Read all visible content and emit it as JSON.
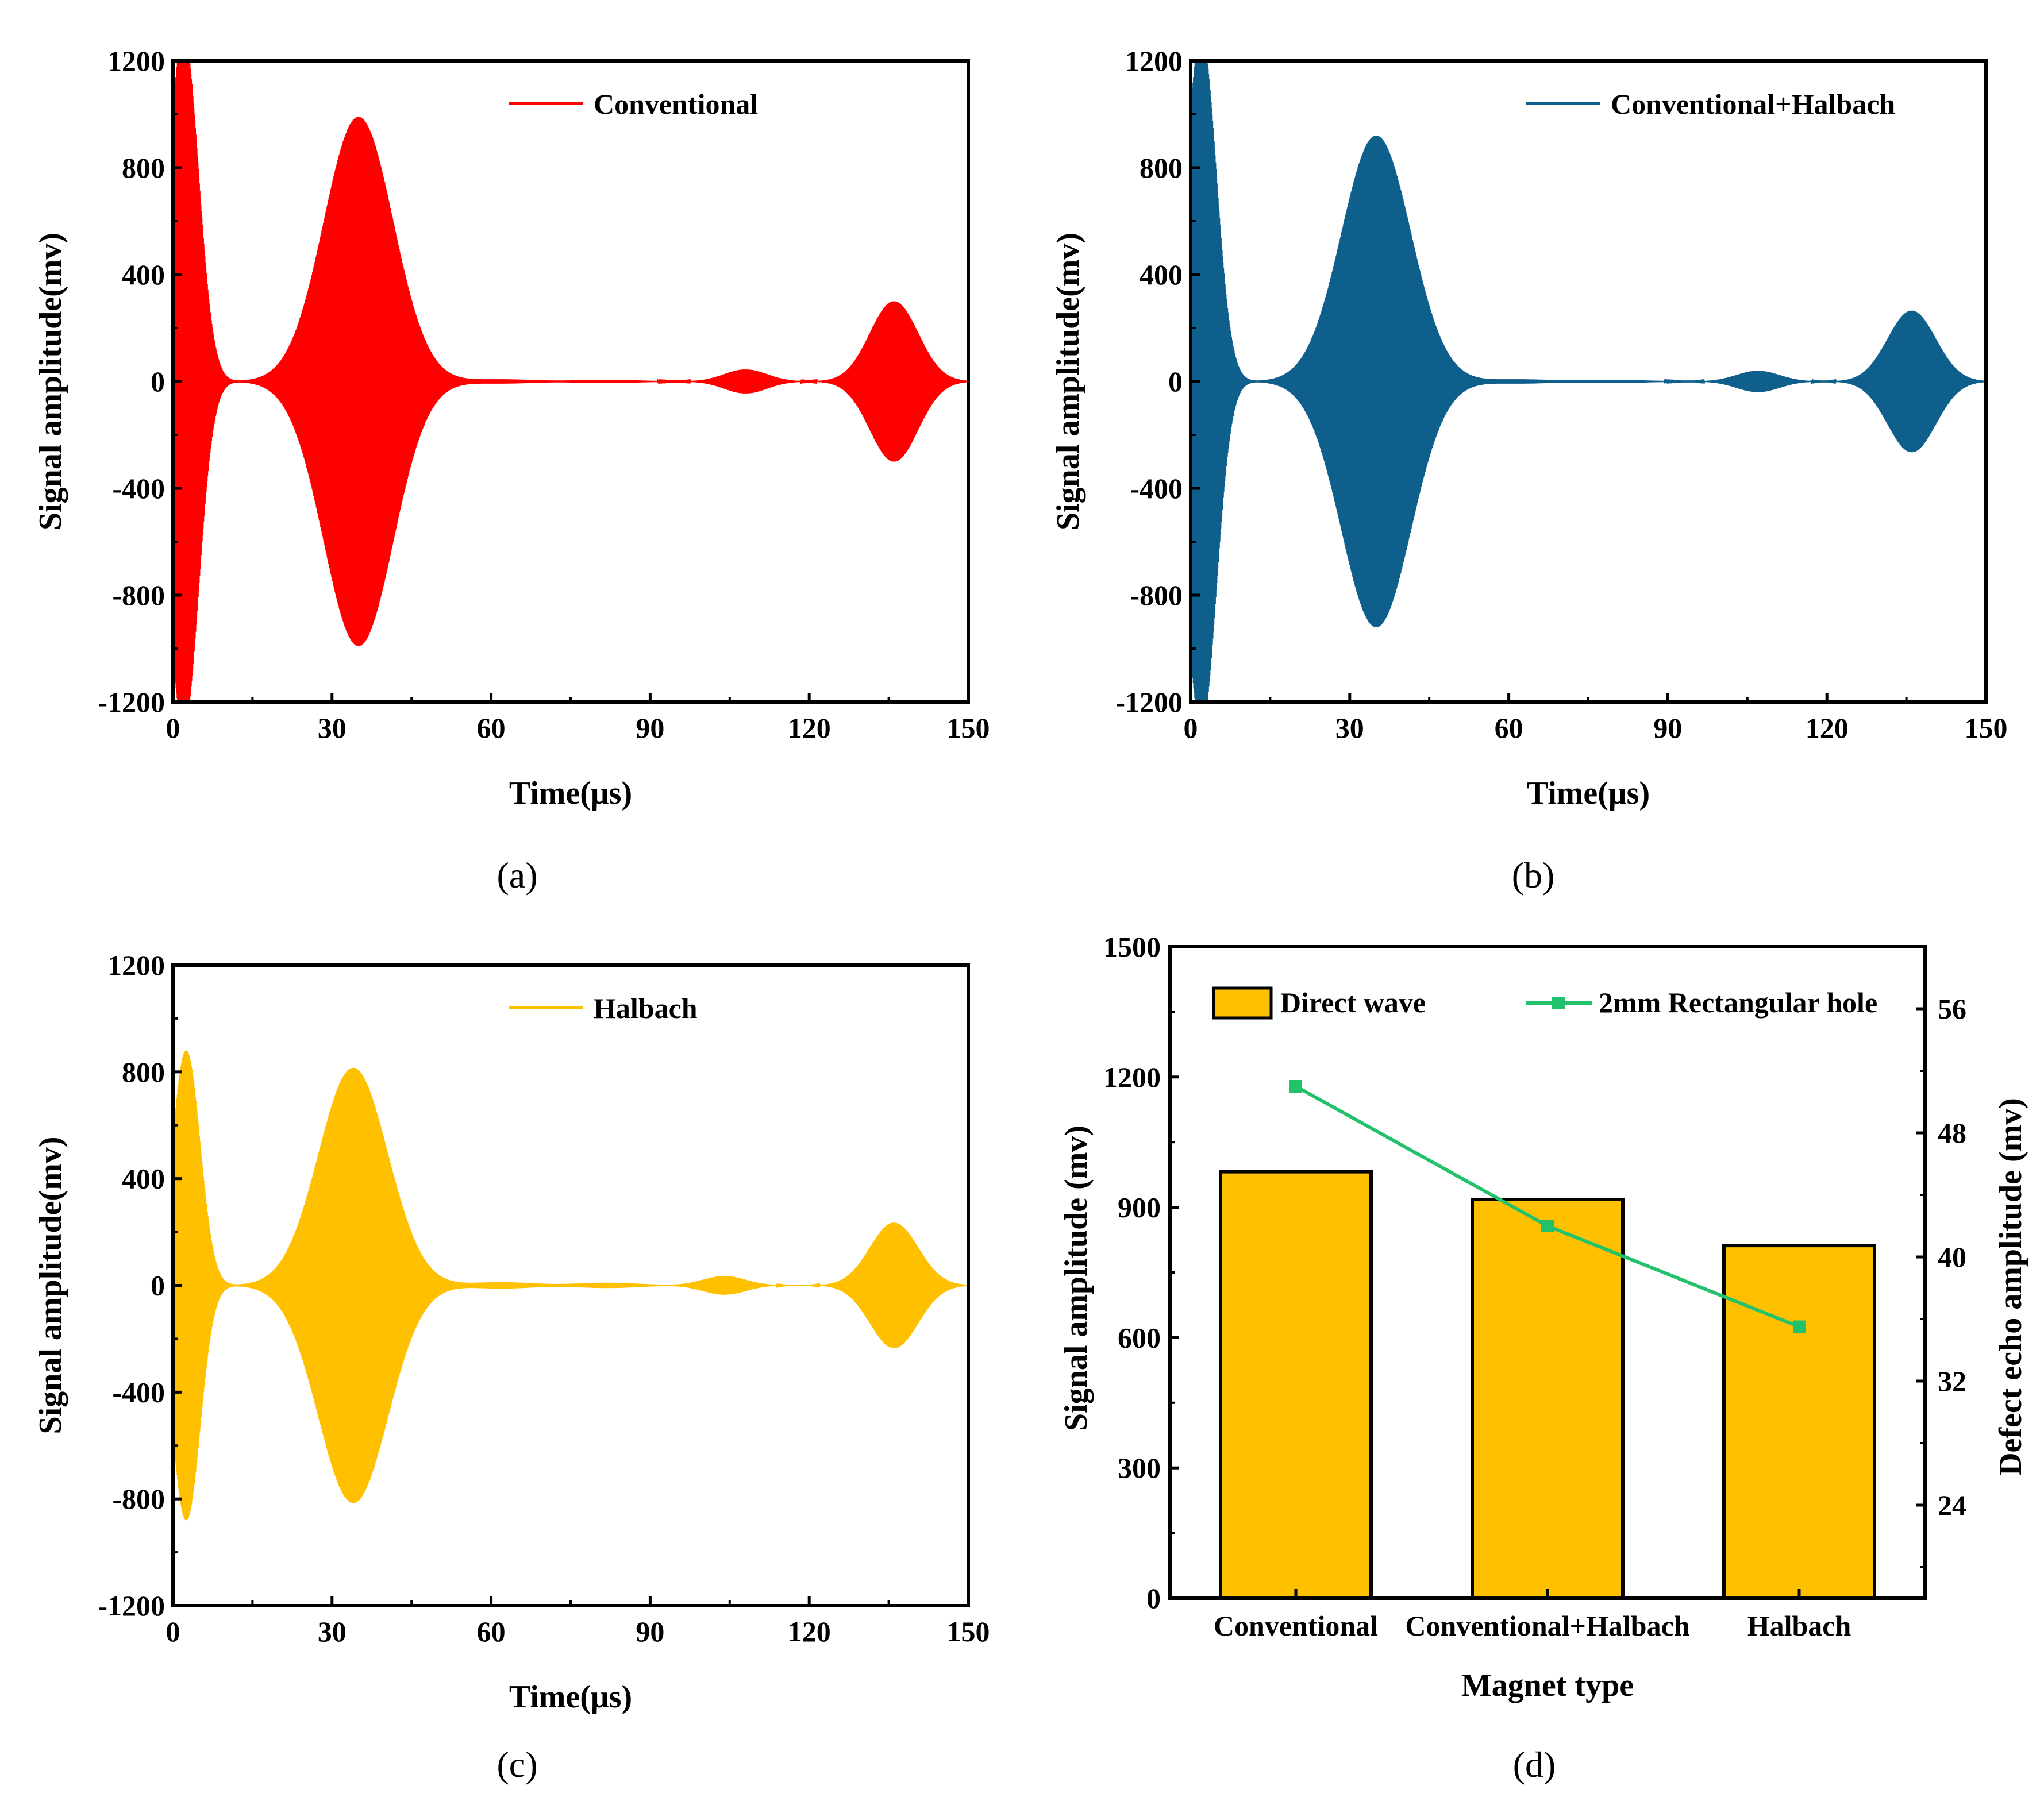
{
  "figure": {
    "panel_labels": [
      "(a)",
      "(b)",
      "(c)",
      "(d)"
    ]
  },
  "chart_data": [
    {
      "type": "line",
      "panel": "(a)",
      "legend": "Conventional",
      "color": "#ff0000",
      "xlabel": "Time(μs)",
      "ylabel": "Signal amplitude(mv)",
      "xlim": [
        0,
        150
      ],
      "ylim": [
        -1200,
        1200
      ],
      "xticks": [
        0,
        30,
        60,
        90,
        120,
        150
      ],
      "yticks": [
        -1200,
        -800,
        -400,
        0,
        400,
        800,
        1200
      ],
      "packets": [
        {
          "center": 2,
          "width": 2.8,
          "amp": 1300,
          "skew": 0.0
        },
        {
          "center": 35,
          "width": 6.5,
          "amp": 990,
          "skew": 0.0
        },
        {
          "center": 108,
          "width": 4.0,
          "amp": 45,
          "skew": 0.0
        },
        {
          "center": 136,
          "width": 4.5,
          "amp": 300,
          "skew": 0.0
        },
        {
          "center": 62,
          "width": 6.0,
          "amp": 8,
          "skew": 0.0
        },
        {
          "center": 82,
          "width": 6.0,
          "amp": 6,
          "skew": 0.0
        }
      ]
    },
    {
      "type": "line",
      "panel": "(b)",
      "legend": "Conventional+Halbach",
      "color": "#0e5f8c",
      "xlabel": "Time(μs)",
      "ylabel": "Signal amplitude(mv)",
      "xlim": [
        0,
        150
      ],
      "ylim": [
        -1200,
        1200
      ],
      "xticks": [
        0,
        30,
        60,
        90,
        120,
        150
      ],
      "yticks": [
        -1200,
        -800,
        -400,
        0,
        400,
        800,
        1200
      ],
      "packets": [
        {
          "center": 2,
          "width": 2.8,
          "amp": 1300,
          "skew": 0.0
        },
        {
          "center": 35,
          "width": 6.5,
          "amp": 920,
          "skew": 0.0
        },
        {
          "center": 107,
          "width": 4.0,
          "amp": 40,
          "skew": 0.0
        },
        {
          "center": 136,
          "width": 4.5,
          "amp": 265,
          "skew": 0.0
        },
        {
          "center": 62,
          "width": 6.0,
          "amp": 8,
          "skew": 0.0
        },
        {
          "center": 80,
          "width": 6.0,
          "amp": 6,
          "skew": 0.0
        }
      ]
    },
    {
      "type": "line",
      "panel": "(c)",
      "legend": "Halbach",
      "color": "#ffc000",
      "xlabel": "Time(μs)",
      "ylabel": "Signal amplitude(mv)",
      "xlim": [
        0,
        150
      ],
      "ylim": [
        -1200,
        1200
      ],
      "xticks": [
        0,
        30,
        60,
        90,
        120,
        150
      ],
      "yticks": [
        -1200,
        -800,
        -400,
        0,
        400,
        800,
        1200
      ],
      "packets": [
        {
          "center": 2.5,
          "width": 2.6,
          "amp": 880,
          "skew": 0.0
        },
        {
          "center": 34,
          "width": 6.5,
          "amp": 815,
          "skew": 0.0
        },
        {
          "center": 104,
          "width": 4.0,
          "amp": 35,
          "skew": 0.0
        },
        {
          "center": 136,
          "width": 4.5,
          "amp": 235,
          "skew": 0.0
        },
        {
          "center": 62,
          "width": 6.0,
          "amp": 12,
          "skew": 0.0
        },
        {
          "center": 82,
          "width": 6.0,
          "amp": 10,
          "skew": 0.0
        }
      ]
    },
    {
      "type": "bar",
      "panel": "(d)",
      "categories": [
        "Conventional",
        "Conventional+Halbach",
        "Halbach"
      ],
      "xlabel": "Magnet type",
      "ylabel": "Signal amplitude (mv)",
      "y2label": "Defect echo amplitude (mv)",
      "ylim": [
        0,
        1500
      ],
      "yticks": [
        0,
        300,
        600,
        900,
        1200,
        1500
      ],
      "y2lim": [
        18,
        60
      ],
      "y2ticks": [
        24,
        32,
        40,
        48,
        56
      ],
      "series": [
        {
          "name": "Direct wave",
          "kind": "bar",
          "axis": "left",
          "color": "#ffc000",
          "values": [
            982,
            918,
            812
          ]
        },
        {
          "name": "2mm Rectangular hole",
          "kind": "line",
          "axis": "right",
          "color": "#21c26b",
          "values": [
            51.0,
            42.0,
            35.5
          ]
        }
      ]
    }
  ]
}
